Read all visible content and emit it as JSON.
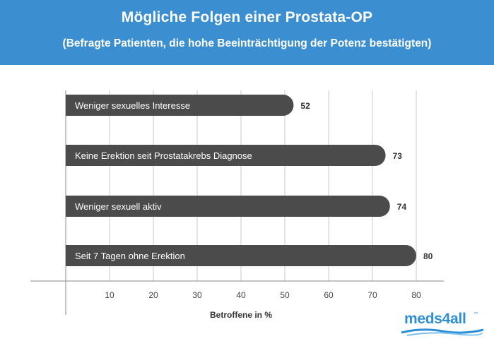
{
  "header": {
    "title": "Mögliche Folgen einer Prostata-OP",
    "subtitle": "(Befragte Patienten, die hohe Beeinträchtigung der Potenz bestätigten)"
  },
  "chart_data": {
    "type": "bar",
    "orientation": "horizontal",
    "categories": [
      "Weniger sexuelles Interesse",
      "Keine Erektion seit Prostatakrebs Diagnose",
      "Weniger sexuell aktiv",
      "Seit 7 Tagen ohne Erektion"
    ],
    "values": [
      52,
      73,
      74,
      80
    ],
    "xlabel": "Betroffene in %",
    "ylabel": "",
    "xticks": [
      10,
      20,
      30,
      40,
      50,
      60,
      70,
      80
    ],
    "xlim": [
      0,
      80
    ],
    "grid": true,
    "legend": "none"
  },
  "colors": {
    "banner": "#3b8fd1",
    "bar": "#4b4b4b",
    "grid": "#c8c8c8",
    "axis": "#888888",
    "logo": "#2f8fd6"
  },
  "logo": {
    "text": "meds4all",
    "tm": "™"
  }
}
